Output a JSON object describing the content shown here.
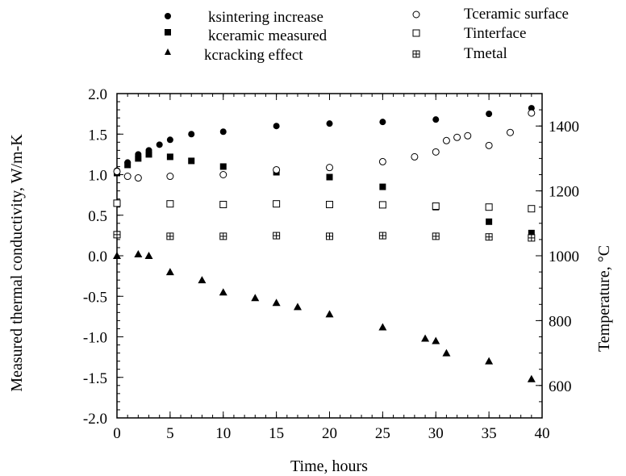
{
  "chart_data": {
    "type": "scatter",
    "xlabel": "Time, hours",
    "ylabel_left": "Measured thermal conductivity,  W/m-K",
    "ylabel_right": "Temperature, °C",
    "xlim": [
      0,
      40
    ],
    "ylim_left": [
      -2.0,
      2.0
    ],
    "ylim_right": [
      500,
      1500
    ],
    "x_ticks": [
      "0",
      "5",
      "10",
      "15",
      "20",
      "25",
      "30",
      "35",
      "40"
    ],
    "y_left_ticks": [
      "-2.0",
      "-1.5",
      "-1.0",
      "-0.5",
      "0.0",
      "0.5",
      "1.0",
      "1.5",
      "2.0"
    ],
    "y_right_ticks": [
      "600",
      "800",
      "1000",
      "1200",
      "1400"
    ],
    "grid": false,
    "legend": [
      {
        "label": "ksintering increase",
        "marker": "filled-circle",
        "axis": "left"
      },
      {
        "label": "kceramic measured",
        "marker": "filled-square",
        "axis": "left"
      },
      {
        "label": "kcracking effect",
        "marker": "filled-triangle",
        "axis": "left"
      },
      {
        "label": "Tceramic surface",
        "marker": "open-circle",
        "axis": "right"
      },
      {
        "label": "Tinterface",
        "marker": "open-square",
        "axis": "right"
      },
      {
        "label": "Tmetal",
        "marker": "crossed-square",
        "axis": "right"
      }
    ],
    "series": [
      {
        "label": "ksintering increase",
        "axis": "left",
        "x": [
          0,
          1,
          2,
          3,
          4,
          5,
          7,
          10,
          15,
          20,
          25,
          30,
          35,
          39
        ],
        "y": [
          1.05,
          1.15,
          1.25,
          1.3,
          1.37,
          1.43,
          1.5,
          1.53,
          1.6,
          1.63,
          1.65,
          1.68,
          1.75,
          1.82
        ]
      },
      {
        "label": "kceramic measured",
        "axis": "left",
        "x": [
          0,
          1,
          2,
          3,
          5,
          7,
          10,
          15,
          20,
          25,
          30,
          35,
          39
        ],
        "y": [
          1.02,
          1.12,
          1.2,
          1.25,
          1.22,
          1.17,
          1.1,
          1.03,
          0.97,
          0.85,
          0.6,
          0.42,
          0.28
        ]
      },
      {
        "label": "kcracking effect",
        "axis": "left",
        "x": [
          0,
          2,
          3,
          5,
          8,
          10,
          13,
          15,
          17,
          20,
          25,
          29,
          30,
          31,
          35,
          39
        ],
        "y": [
          0.0,
          0.02,
          0.0,
          -0.2,
          -0.3,
          -0.45,
          -0.52,
          -0.58,
          -0.63,
          -0.72,
          -0.88,
          -1.02,
          -1.05,
          -1.2,
          -1.3,
          -1.52
        ]
      },
      {
        "label": "Tceramic surface",
        "axis": "right",
        "x": [
          0,
          1,
          2,
          5,
          10,
          15,
          20,
          25,
          28,
          30,
          31,
          32,
          33,
          35,
          37,
          39
        ],
        "y": [
          1260,
          1245,
          1240,
          1245,
          1250,
          1265,
          1272,
          1290,
          1305,
          1320,
          1355,
          1365,
          1370,
          1340,
          1380,
          1440
        ]
      },
      {
        "label": "Tinterface",
        "axis": "right",
        "x": [
          0,
          5,
          10,
          15,
          20,
          25,
          30,
          35,
          39
        ],
        "y": [
          1162,
          1160,
          1158,
          1160,
          1158,
          1157,
          1153,
          1150,
          1145
        ]
      },
      {
        "label": "Tmetal",
        "axis": "right",
        "x": [
          0,
          5,
          10,
          15,
          20,
          25,
          30,
          35,
          39
        ],
        "y": [
          1065,
          1060,
          1060,
          1062,
          1060,
          1062,
          1060,
          1058,
          1055
        ]
      }
    ]
  }
}
